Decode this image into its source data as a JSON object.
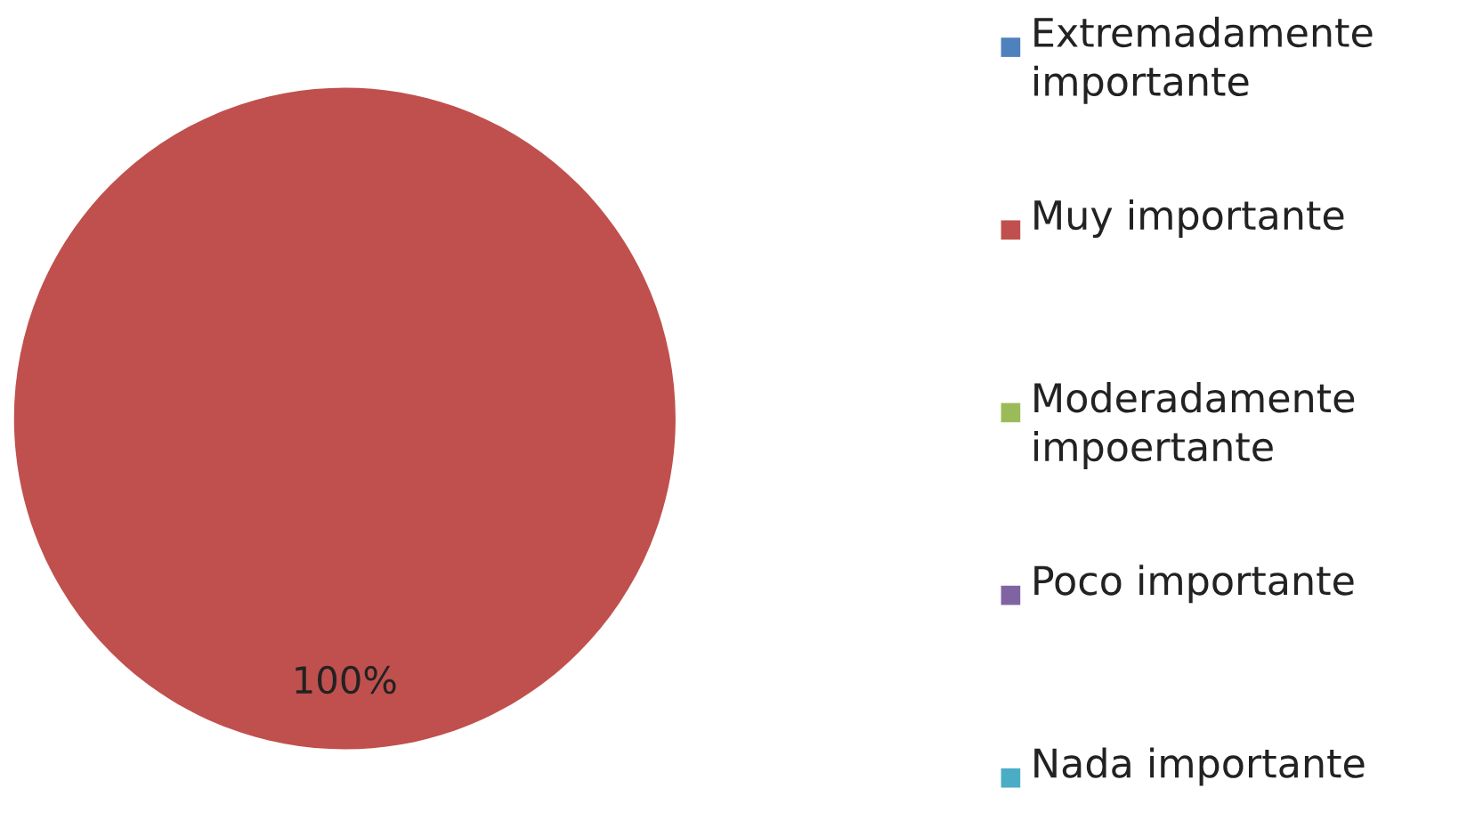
{
  "chart_data": {
    "type": "pie",
    "categories": [
      "Extremadamente importante",
      "Muy importante",
      "Moderadamente impoertante",
      "Poco importante",
      "Nada importante"
    ],
    "values": [
      0,
      100,
      0,
      0,
      0
    ],
    "colors": [
      "#4f81bd",
      "#c0504d",
      "#9bbb59",
      "#8064a2",
      "#4bacc6"
    ],
    "value_labels": [
      null,
      "100%",
      null,
      null,
      null
    ],
    "legend": "right"
  }
}
